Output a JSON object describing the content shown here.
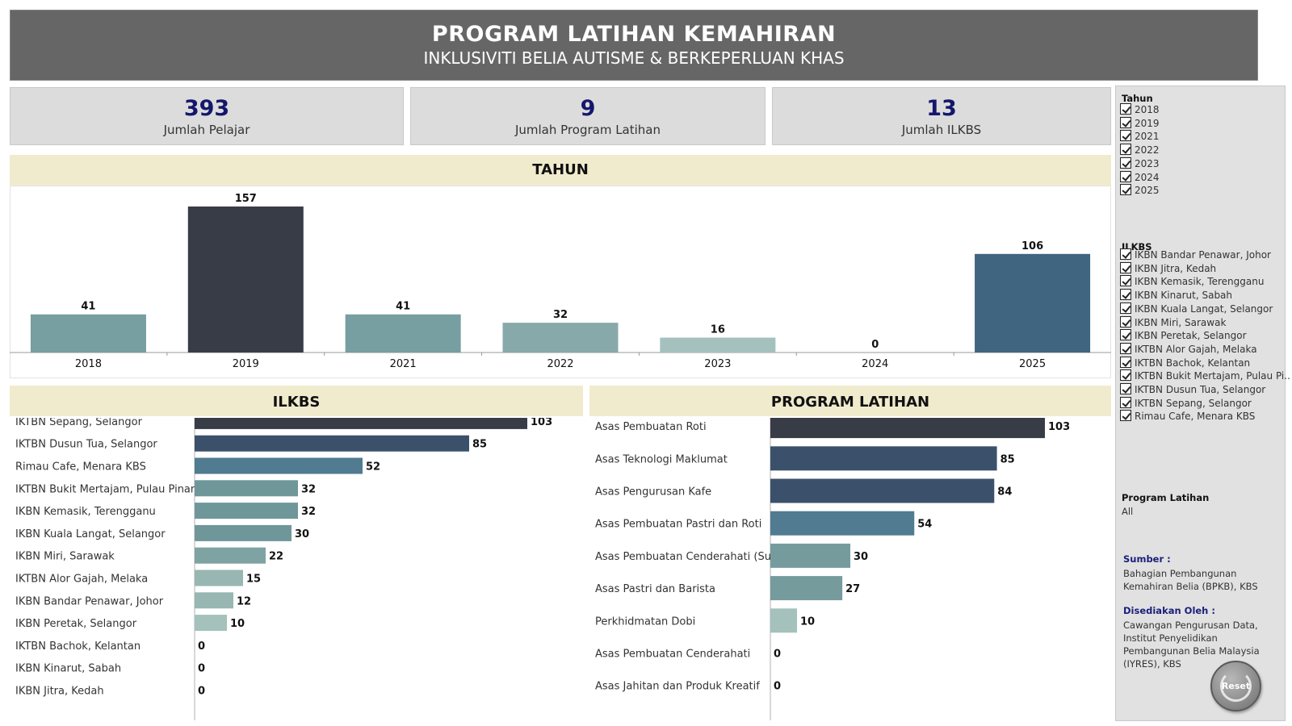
{
  "header": {
    "title": "PROGRAM LATIHAN KEMAHIRAN",
    "subtitle": "INKLUSIVITI BELIA AUTISME & BERKEPERLUAN KHAS"
  },
  "kpis": [
    {
      "value": "393",
      "label": "Jumlah Pelajar"
    },
    {
      "value": "9",
      "label": "Jumlah Program Latihan"
    },
    {
      "value": "13",
      "label": "Jumlah ILKBS"
    }
  ],
  "chart_data": [
    {
      "type": "bar",
      "title": "TAHUN",
      "categories": [
        "2018",
        "2019",
        "2021",
        "2022",
        "2023",
        "2024",
        "2025"
      ],
      "values": [
        41,
        157,
        41,
        32,
        16,
        0,
        106
      ],
      "colors": [
        "#779ea1",
        "#383c47",
        "#779ea1",
        "#87a9a9",
        "#a4c1be",
        "#a4c1be",
        "#3f6580"
      ],
      "orientation": "vertical",
      "grid": false
    },
    {
      "type": "bar",
      "title": "ILKBS",
      "categories": [
        "IKTBN Sepang, Selangor",
        "IKTBN Dusun Tua, Selangor",
        "Rimau Cafe, Menara KBS",
        "IKTBN Bukit Mertajam, Pulau Pinang",
        "IKBN Kemasik, Terengganu",
        "IKBN Kuala Langat, Selangor",
        "IKBN Miri, Sarawak",
        "IKTBN Alor Gajah, Melaka",
        "IKBN Bandar Penawar, Johor",
        "IKBN Peretak, Selangor",
        "IKTBN Bachok, Kelantan",
        "IKBN Kinarut, Sabah",
        "IKBN Jitra, Kedah"
      ],
      "values": [
        103,
        85,
        52,
        32,
        32,
        30,
        22,
        15,
        12,
        10,
        0,
        0,
        0
      ],
      "colors": [
        "#383c47",
        "#3b516b",
        "#507b90",
        "#6f9799",
        "#6f9799",
        "#6f9799",
        "#7fa3a3",
        "#98b6b2",
        "#98b6b2",
        "#a4c1bc",
        "#a4c1bc",
        "#a4c1bc",
        "#a4c1bc"
      ],
      "orientation": "horizontal",
      "grid": false
    },
    {
      "type": "bar",
      "title": "PROGRAM LATIHAN",
      "categories": [
        "Asas Pembuatan Roti",
        "Asas Teknologi Maklumat",
        "Asas Pengurusan Kafe",
        "Asas Pembuatan Pastri dan Roti",
        "Asas Pembuatan Cenderahati (Sukan)",
        "Asas Pastri dan Barista",
        "Perkhidmatan Dobi",
        "Asas Pembuatan Cenderahati",
        "Asas Jahitan dan Produk Kreatif"
      ],
      "values": [
        103,
        85,
        84,
        54,
        30,
        27,
        10,
        0,
        0
      ],
      "colors": [
        "#383c47",
        "#3b516b",
        "#3b516b",
        "#507b90",
        "#769b9d",
        "#769b9d",
        "#a4c1bc",
        "#a4c1bc",
        "#a4c1bc"
      ],
      "orientation": "horizontal",
      "grid": false
    }
  ],
  "sidebar": {
    "tahun_title": "Tahun",
    "tahun_items": [
      "2018",
      "2019",
      "2021",
      "2022",
      "2023",
      "2024",
      "2025"
    ],
    "ilkbs_title": "ILKBS",
    "ilkbs_items": [
      "IKBN Bandar Penawar, Johor",
      "IKBN Jitra, Kedah",
      "IKBN Kemasik, Terengganu",
      "IKBN Kinarut, Sabah",
      "IKBN Kuala Langat, Selangor",
      "IKBN Miri, Sarawak",
      "IKBN Peretak, Selangor",
      "IKTBN Alor Gajah, Melaka",
      "IKTBN Bachok, Kelantan",
      "IKTBN Bukit Mertajam, Pulau Pi..",
      "IKTBN Dusun Tua, Selangor",
      "IKTBN Sepang, Selangor",
      "Rimau Cafe, Menara KBS"
    ],
    "program_title": "Program Latihan",
    "program_value": "All",
    "sumber_label": "Sumber :",
    "sumber_lines": [
      "Bahagian Pembangunan",
      "Kemahiran Belia (BPKB), KBS"
    ],
    "disediakan_label": "Disediakan Oleh :",
    "disediakan_lines": [
      "Cawangan Pengurusan Data,",
      "Institut Penyelidikan",
      "Pembangunan Belia Malaysia",
      "(IYRES), KBS"
    ],
    "reset_label": "Reset"
  }
}
